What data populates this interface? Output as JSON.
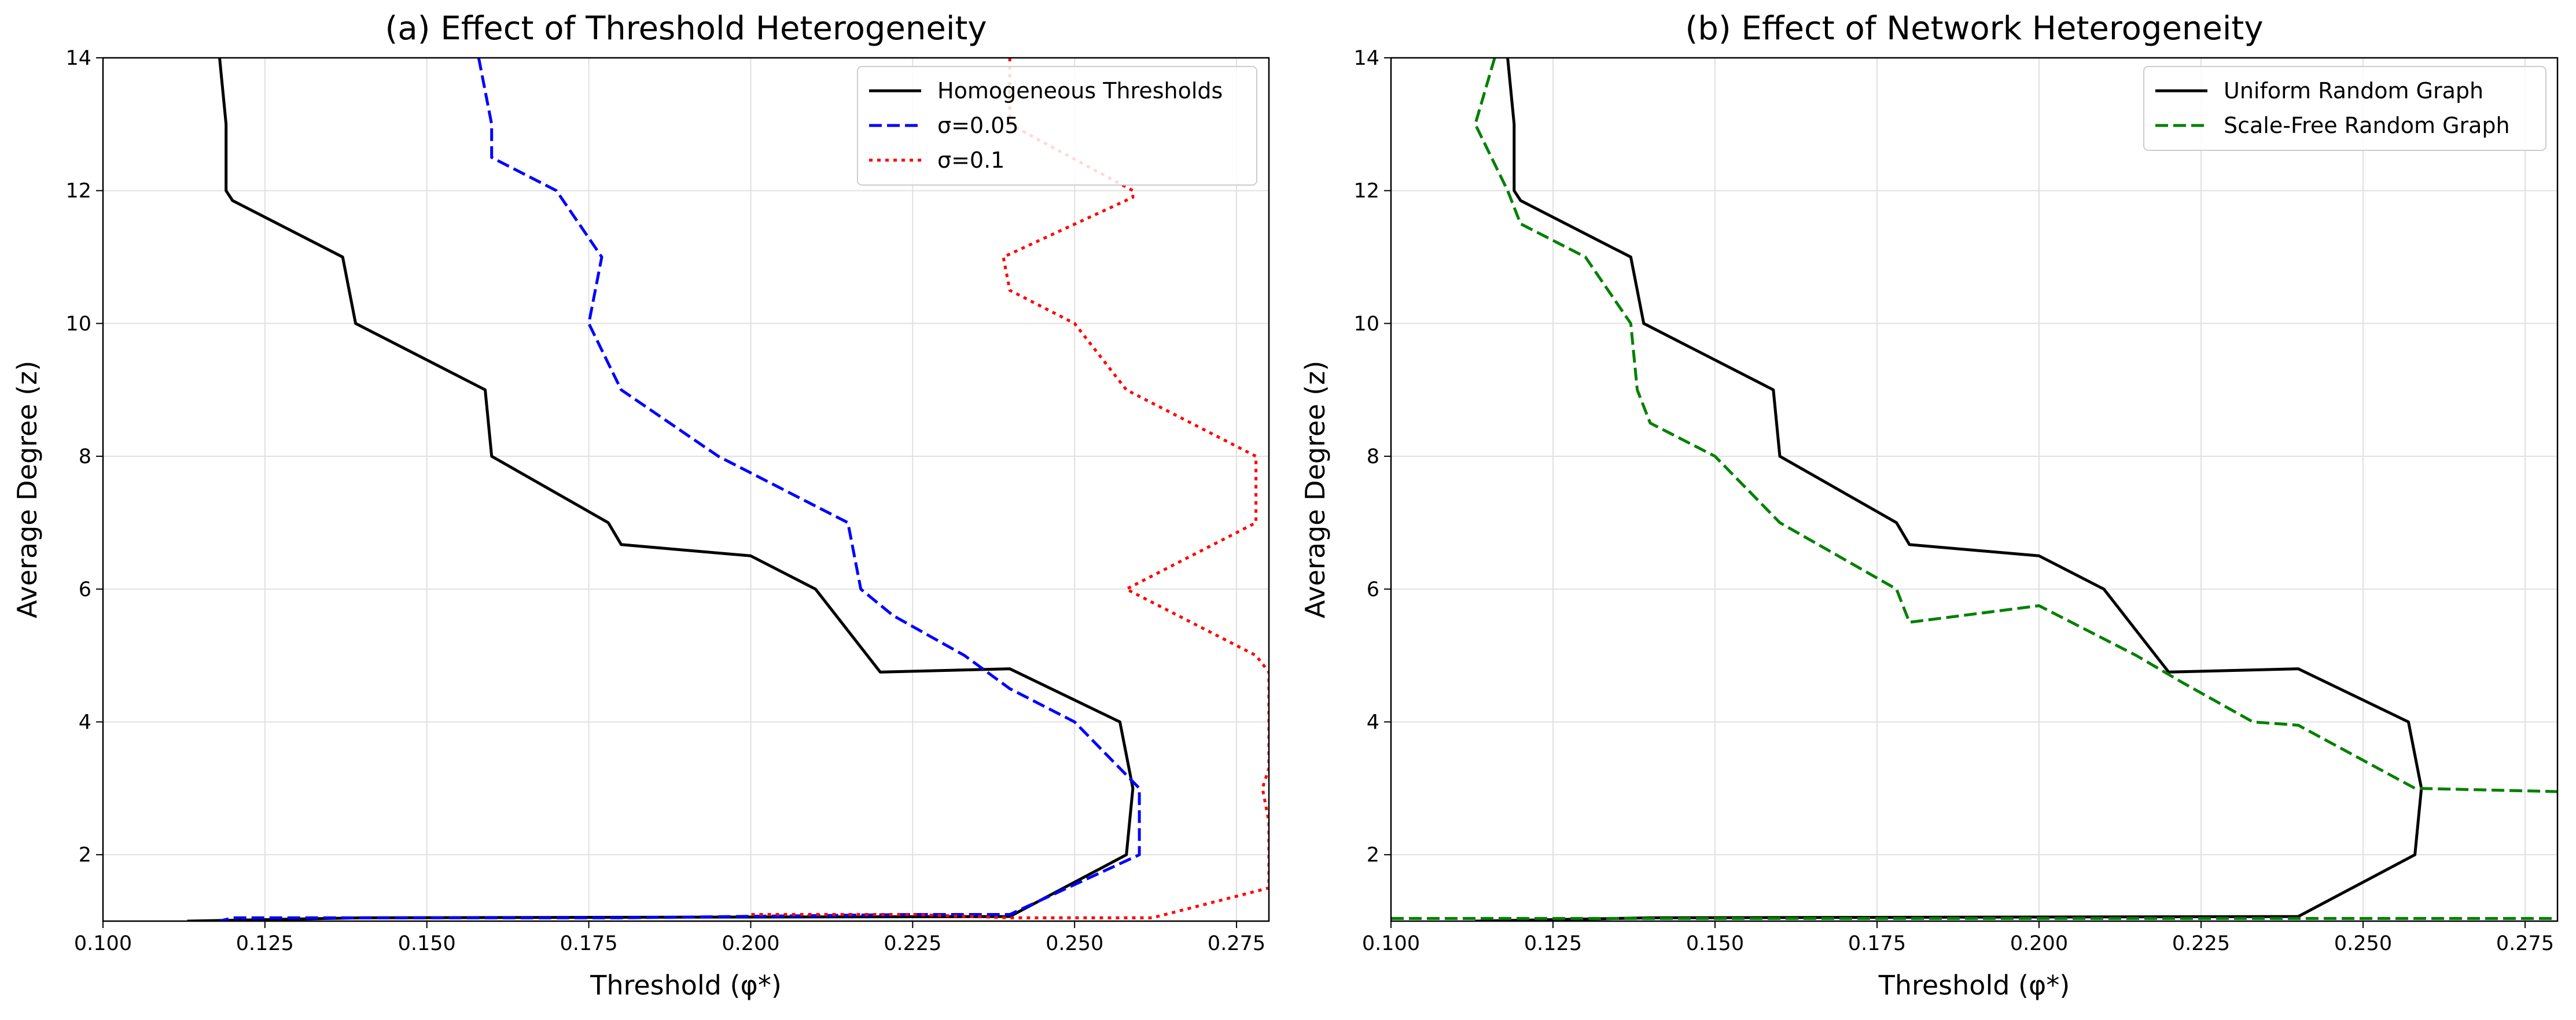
{
  "figure": {
    "background": "#ffffff"
  },
  "chart_data": [
    {
      "type": "line",
      "title": "(a) Effect of Threshold Heterogeneity",
      "xlabel": "Threshold (φ*)",
      "ylabel": "Average Degree (z)",
      "xlim": [
        0.1,
        0.28
      ],
      "ylim": [
        1,
        14
      ],
      "xticks": [
        "0.100",
        "0.125",
        "0.150",
        "0.175",
        "0.200",
        "0.225",
        "0.250",
        "0.275"
      ],
      "yticks": [
        "2",
        "4",
        "6",
        "8",
        "10",
        "12",
        "14"
      ],
      "grid": true,
      "legend_position": "top-right",
      "series": [
        {
          "name": "Homogeneous Thresholds",
          "color": "#000000",
          "style": "solid",
          "points": [
            [
              0.118,
              14
            ],
            [
              0.119,
              13
            ],
            [
              0.119,
              12
            ],
            [
              0.12,
              11.85
            ],
            [
              0.137,
              11
            ],
            [
              0.139,
              10
            ],
            [
              0.159,
              9
            ],
            [
              0.16,
              8
            ],
            [
              0.178,
              7
            ],
            [
              0.18,
              6.67
            ],
            [
              0.2,
              6.5
            ],
            [
              0.21,
              6
            ],
            [
              0.22,
              4.75
            ],
            [
              0.24,
              4.8
            ],
            [
              0.257,
              4
            ],
            [
              0.259,
              3
            ],
            [
              0.258,
              2
            ],
            [
              0.24,
              1.07
            ],
            [
              0.14,
              1.05
            ],
            [
              0.113,
              1
            ]
          ]
        },
        {
          "name": "σ=0.05",
          "color": "#0000ff",
          "style": "dashed",
          "points": [
            [
              0.158,
              14
            ],
            [
              0.16,
              13
            ],
            [
              0.16,
              12.5
            ],
            [
              0.17,
              12
            ],
            [
              0.177,
              11
            ],
            [
              0.175,
              10
            ],
            [
              0.18,
              9
            ],
            [
              0.195,
              8
            ],
            [
              0.215,
              7
            ],
            [
              0.217,
              6
            ],
            [
              0.222,
              5.6
            ],
            [
              0.233,
              5
            ],
            [
              0.24,
              4.5
            ],
            [
              0.25,
              4
            ],
            [
              0.26,
              3
            ],
            [
              0.26,
              2
            ],
            [
              0.24,
              1.1
            ],
            [
              0.225,
              1.1
            ],
            [
              0.18,
              1.05
            ],
            [
              0.12,
              1.05
            ],
            [
              0.118,
              1
            ]
          ]
        },
        {
          "name": "σ=0.1",
          "color": "#ff0000",
          "style": "dotted",
          "points": [
            [
              0.24,
              14
            ],
            [
              0.24,
              13
            ],
            [
              0.259,
              12
            ],
            [
              0.259,
              11.9
            ],
            [
              0.239,
              11
            ],
            [
              0.24,
              10.5
            ],
            [
              0.25,
              10
            ],
            [
              0.258,
              9
            ],
            [
              0.278,
              8
            ],
            [
              0.278,
              7
            ],
            [
              0.258,
              6
            ],
            [
              0.278,
              5
            ],
            [
              0.28,
              4.75
            ],
            [
              0.28,
              3.3
            ],
            [
              0.279,
              3
            ],
            [
              0.28,
              2.5
            ],
            [
              0.28,
              1.5
            ],
            [
              0.262,
              1.05
            ],
            [
              0.24,
              1.05
            ],
            [
              0.225,
              1.1
            ],
            [
              0.2,
              1.1
            ]
          ]
        }
      ]
    },
    {
      "type": "line",
      "title": "(b) Effect of Network Heterogeneity",
      "xlabel": "Threshold (φ*)",
      "ylabel": "Average Degree (z)",
      "xlim": [
        0.1,
        0.28
      ],
      "ylim": [
        1,
        14
      ],
      "xticks": [
        "0.100",
        "0.125",
        "0.150",
        "0.175",
        "0.200",
        "0.225",
        "0.250",
        "0.275"
      ],
      "yticks": [
        "2",
        "4",
        "6",
        "8",
        "10",
        "12",
        "14"
      ],
      "grid": true,
      "legend_position": "top-right",
      "series": [
        {
          "name": "Uniform Random Graph",
          "color": "#000000",
          "style": "solid",
          "points": [
            [
              0.118,
              14
            ],
            [
              0.119,
              13
            ],
            [
              0.119,
              12
            ],
            [
              0.12,
              11.85
            ],
            [
              0.137,
              11
            ],
            [
              0.139,
              10
            ],
            [
              0.159,
              9
            ],
            [
              0.16,
              8
            ],
            [
              0.178,
              7
            ],
            [
              0.18,
              6.67
            ],
            [
              0.2,
              6.5
            ],
            [
              0.21,
              6
            ],
            [
              0.22,
              4.75
            ],
            [
              0.24,
              4.8
            ],
            [
              0.257,
              4
            ],
            [
              0.259,
              3
            ],
            [
              0.258,
              2
            ],
            [
              0.24,
              1.07
            ],
            [
              0.14,
              1.05
            ],
            [
              0.113,
              1
            ]
          ]
        },
        {
          "name": "Scale-Free Random Graph",
          "color": "#008000",
          "style": "dashed",
          "points": [
            [
              0.116,
              14
            ],
            [
              0.113,
              13
            ],
            [
              0.118,
              12
            ],
            [
              0.12,
              11.5
            ],
            [
              0.13,
              11
            ],
            [
              0.137,
              10
            ],
            [
              0.138,
              9
            ],
            [
              0.14,
              8.5
            ],
            [
              0.15,
              8
            ],
            [
              0.16,
              7
            ],
            [
              0.178,
              6
            ],
            [
              0.18,
              5.5
            ],
            [
              0.2,
              5.75
            ],
            [
              0.215,
              5
            ],
            [
              0.222,
              4.6
            ],
            [
              0.233,
              4
            ],
            [
              0.24,
              3.95
            ],
            [
              0.258,
              3
            ],
            [
              0.28,
              2.95
            ],
            [
              0.3,
              2.95
            ]
          ]
        },
        {
          "color": "#008000",
          "style": "dashed",
          "points": [
            [
              0.1,
              1.04
            ],
            [
              0.28,
              1.04
            ]
          ]
        }
      ]
    }
  ]
}
